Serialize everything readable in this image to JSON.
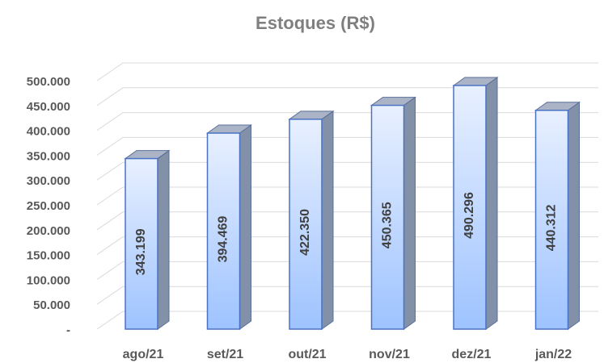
{
  "chart_data": {
    "type": "bar",
    "title": "Estoques (R$)",
    "categories": [
      "ago/21",
      "set/21",
      "out/21",
      "nov/21",
      "dez/21",
      "jan/22"
    ],
    "values": [
      343199,
      394469,
      422350,
      450365,
      490296,
      440312
    ],
    "value_labels": [
      "343.199",
      "394.469",
      "422.350",
      "450.365",
      "490.296",
      "440.312"
    ],
    "color": "#9ec3ff",
    "ylim": [
      0,
      500000
    ],
    "yticks": [
      {
        "value": 0,
        "label": "-"
      },
      {
        "value": 50000,
        "label": "50.000"
      },
      {
        "value": 100000,
        "label": "100.000"
      },
      {
        "value": 150000,
        "label": "150.000"
      },
      {
        "value": 200000,
        "label": "200.000"
      },
      {
        "value": 250000,
        "label": "250.000"
      },
      {
        "value": 300000,
        "label": "300.000"
      },
      {
        "value": 350000,
        "label": "350.000"
      },
      {
        "value": 400000,
        "label": "400.000"
      },
      {
        "value": 450000,
        "label": "450.000"
      },
      {
        "value": 500000,
        "label": "500.000"
      }
    ],
    "grid": true
  }
}
